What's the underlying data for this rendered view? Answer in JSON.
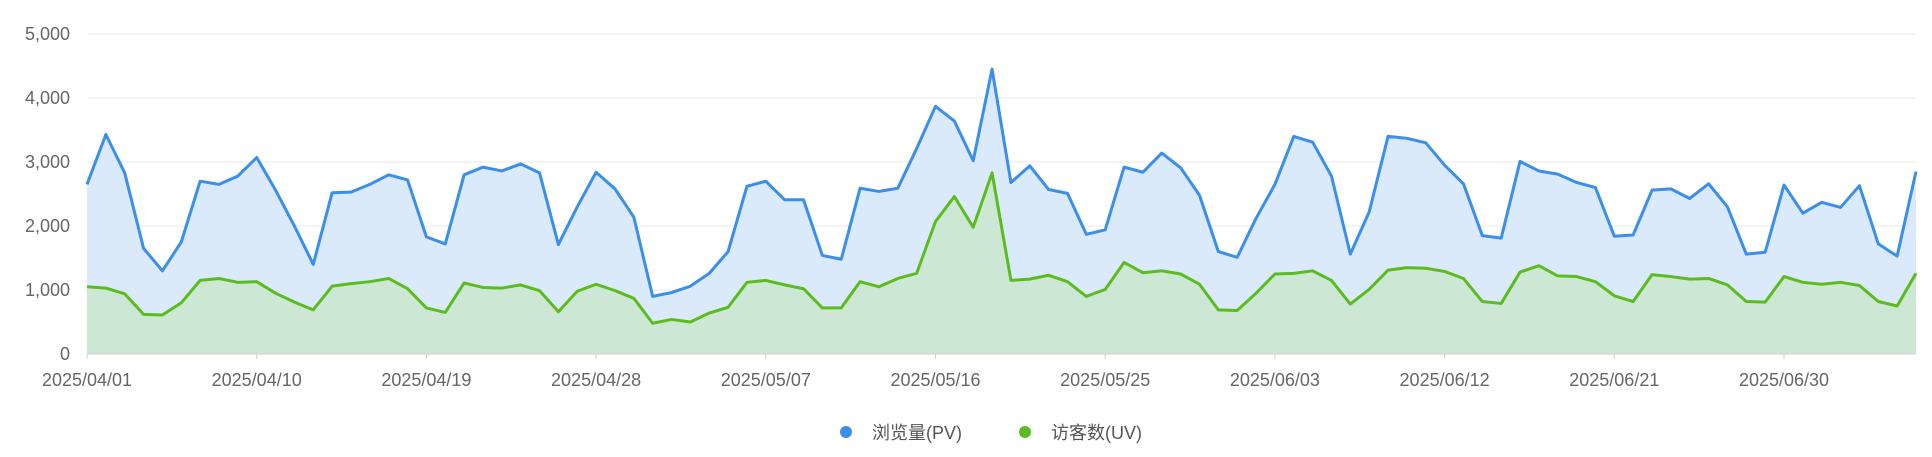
{
  "chart_data": {
    "type": "area",
    "title": "",
    "xlabel": "",
    "ylabel": "",
    "ylim": [
      0,
      5000
    ],
    "y_ticks": [
      "0",
      "1,000",
      "2,000",
      "3,000",
      "4,000",
      "5,000"
    ],
    "y_tick_values": [
      0,
      1000,
      2000,
      3000,
      4000,
      5000
    ],
    "x_tick_labels": [
      "2025/04/01",
      "2025/04/10",
      "2025/04/19",
      "2025/04/28",
      "2025/05/07",
      "2025/05/16",
      "2025/05/25",
      "2025/06/03",
      "2025/06/12",
      "2025/06/21",
      "2025/06/30"
    ],
    "x_start": "2025/04/01",
    "x_end": "2025/07/08",
    "grid": "horizontal",
    "legend_position": "bottom-center",
    "series": [
      {
        "name": "浏览量(PV)",
        "color": "#3b8eea",
        "fill": "#dbeafb",
        "values": [
          2650,
          3430,
          2830,
          1650,
          1300,
          1750,
          2700,
          2650,
          2780,
          3070,
          2560,
          2000,
          1400,
          2520,
          2530,
          2650,
          2800,
          2720,
          1830,
          1720,
          2800,
          2920,
          2860,
          2970,
          2830,
          1710,
          2300,
          2840,
          2580,
          2140,
          900,
          960,
          1060,
          1260,
          1600,
          2620,
          2700,
          2410,
          2410,
          1540,
          1480,
          2590,
          2540,
          2590,
          3210,
          3870,
          3640,
          3020,
          4450,
          2680,
          2940,
          2570,
          2510,
          1870,
          1940,
          2920,
          2840,
          3140,
          2910,
          2480,
          1600,
          1510,
          2120,
          2650,
          3400,
          3310,
          2780,
          1560,
          2220,
          3400,
          3370,
          3300,
          2950,
          2660,
          1850,
          1810,
          3010,
          2860,
          2810,
          2680,
          2600,
          1840,
          1860,
          2560,
          2580,
          2430,
          2660,
          2300,
          1560,
          1590,
          2640,
          2200,
          2370,
          2290,
          2630,
          1720,
          1530,
          2850
        ]
      },
      {
        "name": "访客数(UV)",
        "color": "#5cbc1f",
        "fill": "#cce7d3",
        "values": [
          1050,
          1030,
          940,
          620,
          610,
          800,
          1150,
          1180,
          1120,
          1130,
          950,
          810,
          690,
          1060,
          1100,
          1130,
          1180,
          1020,
          720,
          650,
          1110,
          1040,
          1030,
          1080,
          990,
          660,
          980,
          1090,
          990,
          870,
          480,
          540,
          500,
          640,
          730,
          1120,
          1150,
          1080,
          1020,
          720,
          720,
          1130,
          1050,
          1180,
          1260,
          2070,
          2460,
          1980,
          2830,
          1150,
          1170,
          1230,
          1130,
          900,
          1010,
          1430,
          1270,
          1300,
          1250,
          1090,
          690,
          680,
          950,
          1250,
          1260,
          1300,
          1150,
          780,
          1010,
          1310,
          1350,
          1340,
          1290,
          1180,
          820,
          790,
          1280,
          1380,
          1220,
          1210,
          1130,
          910,
          820,
          1240,
          1210,
          1170,
          1180,
          1080,
          820,
          810,
          1210,
          1120,
          1090,
          1120,
          1070,
          820,
          750,
          1260
        ]
      }
    ]
  },
  "legend": [
    {
      "label": "浏览量(PV)",
      "color": "#3b8eea"
    },
    {
      "label": "访客数(UV)",
      "color": "#5cbc1f"
    }
  ]
}
